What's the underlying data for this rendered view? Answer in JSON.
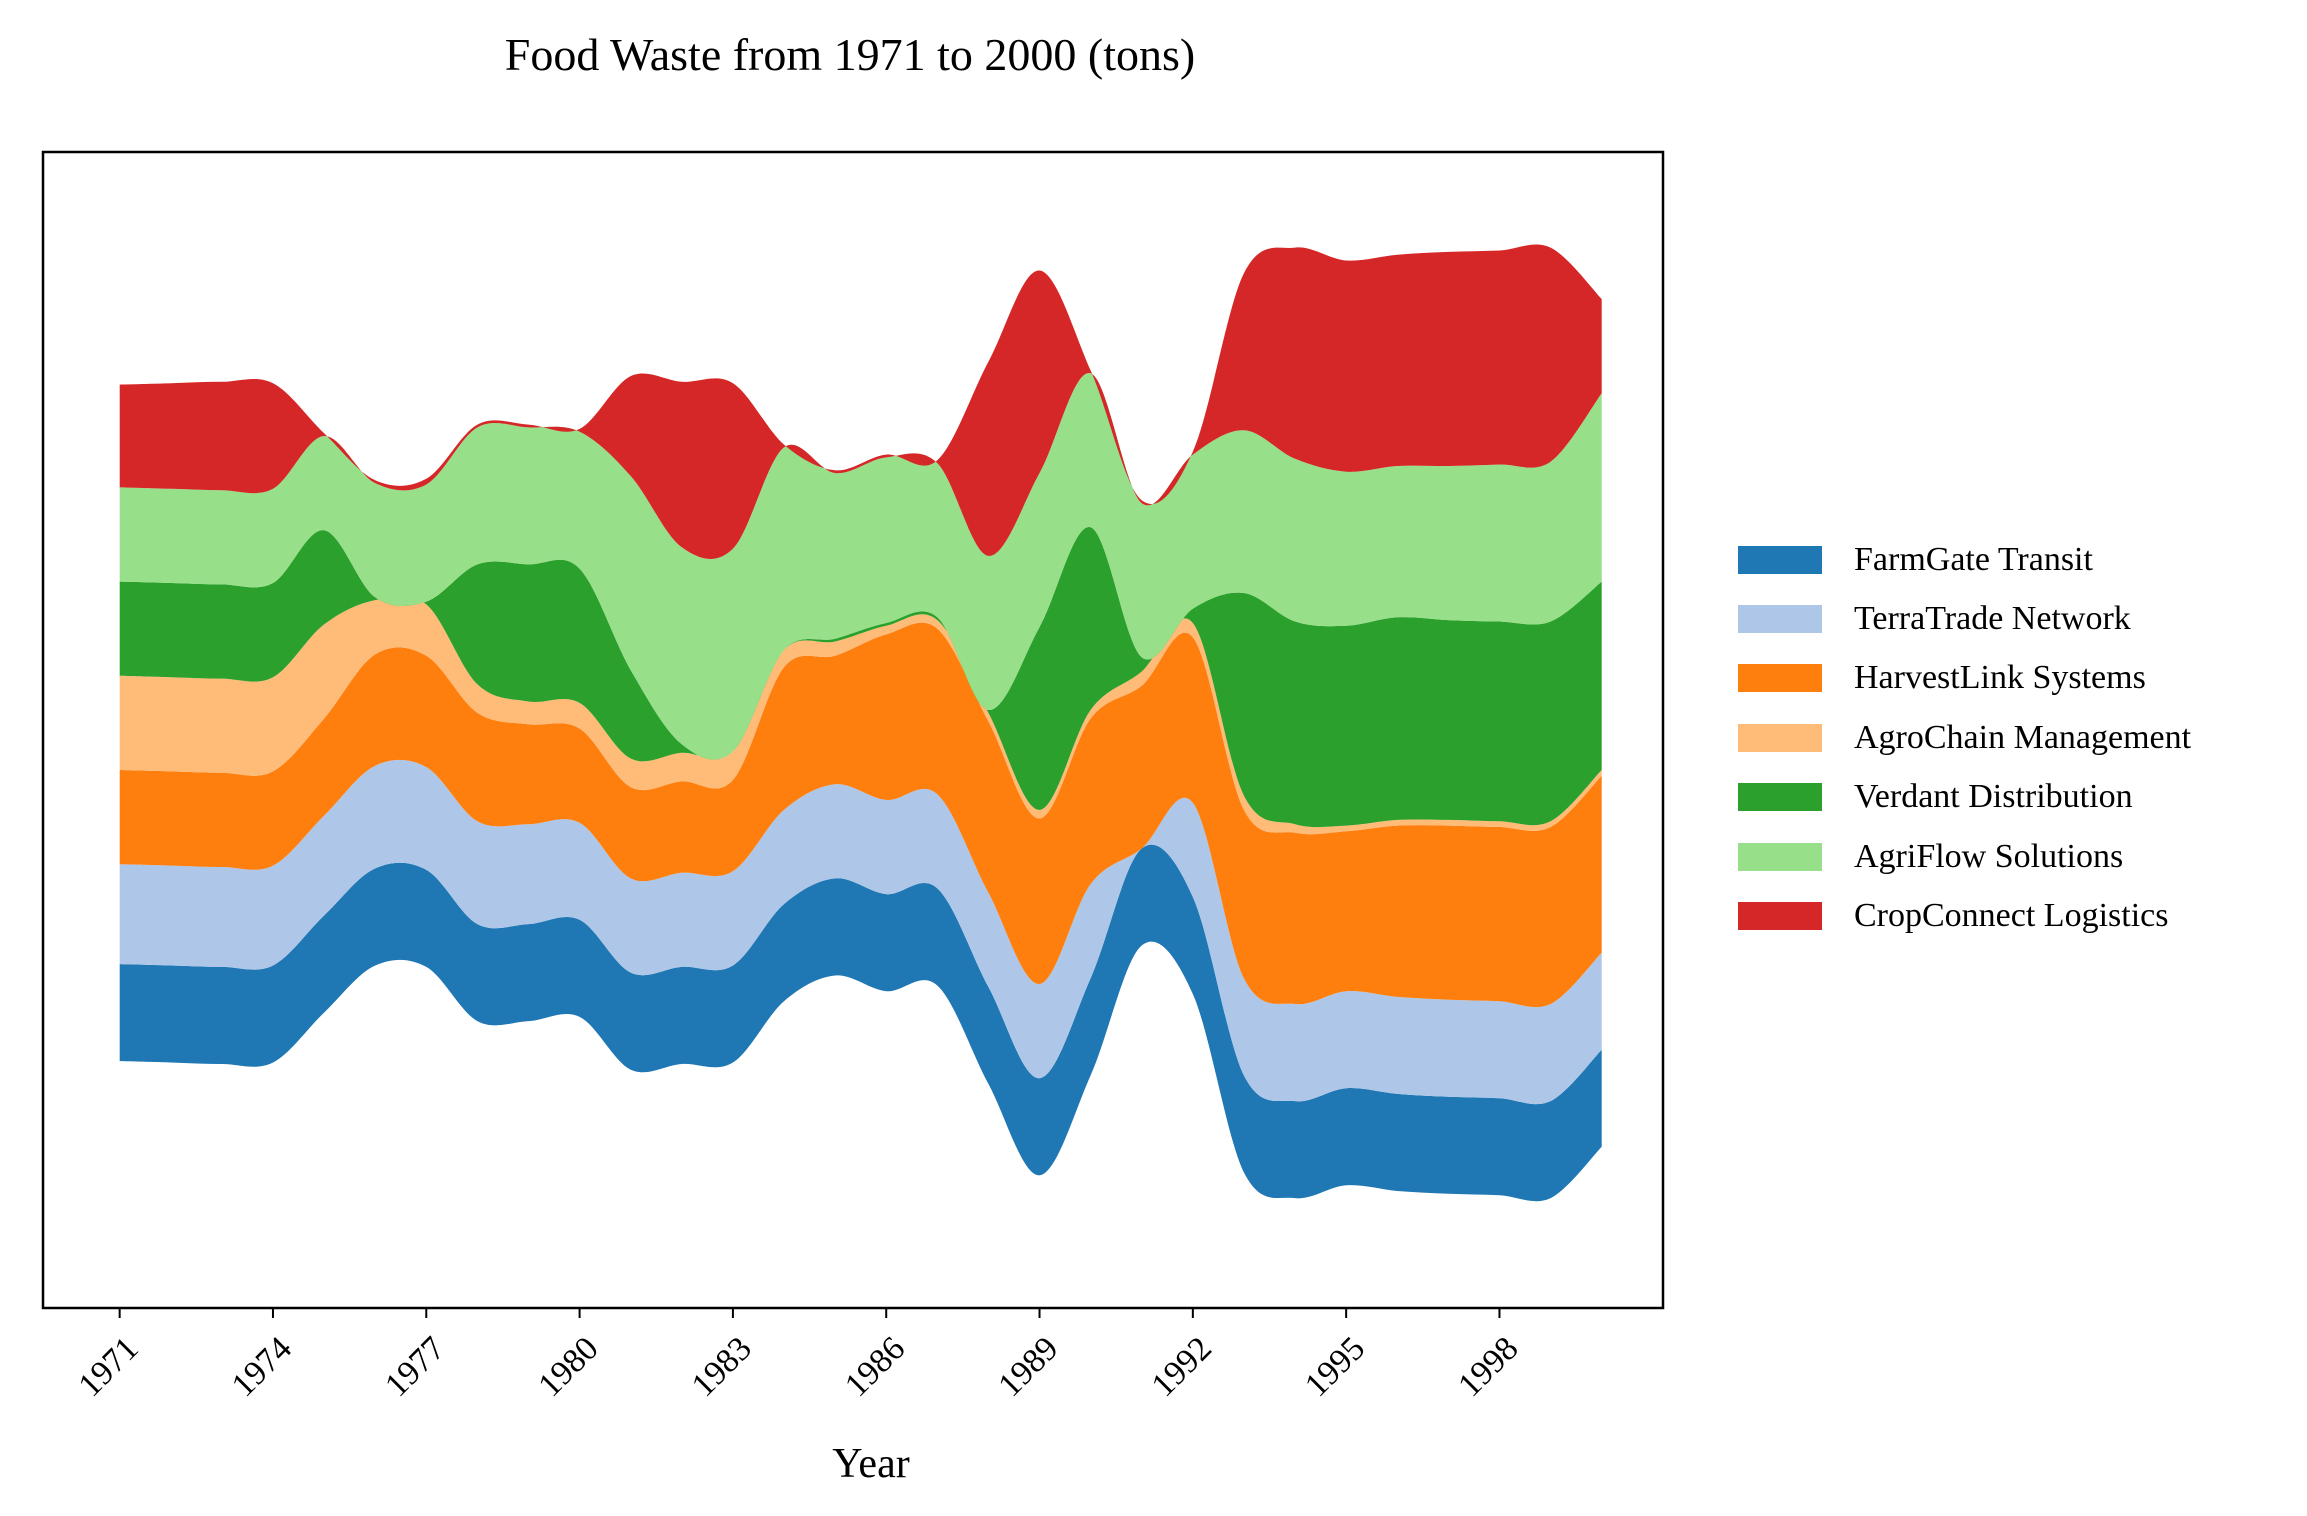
{
  "chart_data": {
    "type": "area",
    "subtype": "streamgraph",
    "title": "Food Waste from 1971 to 2000 (tons)",
    "xlabel": "Year",
    "ylabel": "",
    "x": [
      1971,
      1972,
      1973,
      1974,
      1975,
      1976,
      1977,
      1978,
      1979,
      1980,
      1981,
      1982,
      1983,
      1984,
      1985,
      1986,
      1987,
      1988,
      1989,
      1990,
      1991,
      1992,
      1993,
      1994,
      1995,
      1996,
      1997,
      1998,
      1999,
      2000
    ],
    "xticks": [
      "1971",
      "1974",
      "1977",
      "1980",
      "1983",
      "1986",
      "1989",
      "1992",
      "1995",
      "1998"
    ],
    "xlim": [
      1969.5,
      2001.2
    ],
    "ylim": [
      -205,
      200
    ],
    "grid": false,
    "legend_position": "right",
    "series": [
      {
        "name": "FarmGate Transit",
        "color": "#1f77b4",
        "values": [
          34,
          34,
          34,
          34,
          34,
          34,
          34,
          34,
          34,
          34,
          34,
          34,
          34,
          34,
          34,
          34,
          34,
          34,
          34,
          34,
          34,
          34,
          34,
          34,
          34,
          34,
          34,
          34,
          34,
          34
        ]
      },
      {
        "name": "TerraTrade Network",
        "color": "#aec7e8",
        "values": [
          35,
          35,
          35,
          35,
          35,
          36,
          36,
          36,
          35,
          34,
          33,
          33,
          33,
          33,
          33,
          33,
          33,
          33,
          33,
          33,
          0,
          33,
          34,
          34,
          34,
          34,
          34,
          34,
          34,
          34
        ]
      },
      {
        "name": "HarvestLink Systems",
        "color": "#ff7f0e",
        "values": [
          33,
          33,
          33,
          33,
          34,
          39,
          39,
          38,
          35,
          33,
          32,
          32,
          32,
          50,
          45,
          58,
          58,
          60,
          58,
          58,
          57,
          58,
          59,
          60,
          56,
          60,
          61,
          61,
          62,
          62
        ]
      },
      {
        "name": "AgroChain Management",
        "color": "#ffbb78",
        "values": [
          33,
          33,
          33,
          33,
          33,
          19,
          18,
          10,
          8,
          9,
          10,
          10,
          10,
          6,
          5,
          3,
          3,
          3,
          3,
          3,
          5,
          5,
          5,
          3,
          2,
          2,
          2,
          2,
          2,
          2
        ]
      },
      {
        "name": "Verdant Distribution",
        "color": "#2ca02c",
        "values": [
          33,
          33,
          33,
          33,
          33,
          1,
          1,
          42,
          48,
          47,
          31,
          3,
          0,
          0,
          1,
          1,
          1,
          1,
          64,
          64,
          5,
          5,
          71,
          71,
          70,
          71,
          70,
          70,
          70,
          66
        ]
      },
      {
        "name": "AgriFlow Solutions",
        "color": "#98df8a",
        "values": [
          33,
          33,
          33,
          33,
          33,
          40,
          41,
          48,
          48,
          48,
          68,
          69,
          71,
          71,
          58,
          58,
          54,
          54,
          54,
          54,
          54,
          54,
          57,
          57,
          54,
          53,
          54,
          55,
          56,
          66
        ]
      },
      {
        "name": "CropConnect Logistics",
        "color": "#d62728",
        "values": [
          36,
          37,
          38,
          37,
          1,
          1,
          2,
          1,
          1,
          1,
          35,
          58,
          58,
          1,
          1,
          1,
          1,
          68,
          71,
          1,
          1,
          1,
          55,
          74,
          74,
          74,
          75,
          75,
          75,
          33
        ]
      }
    ]
  }
}
